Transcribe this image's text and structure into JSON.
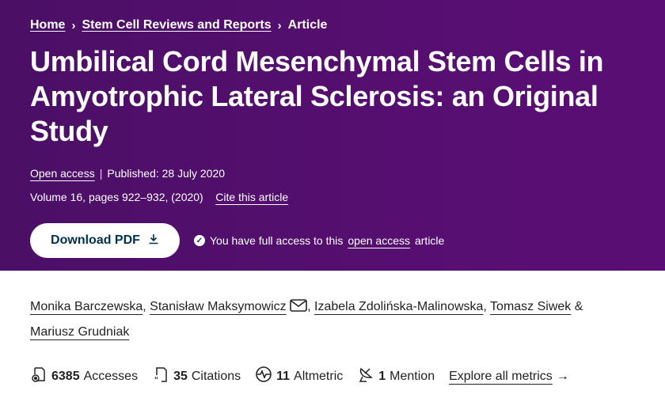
{
  "breadcrumb": {
    "items": [
      "Home",
      "Stem Cell Reviews and Reports",
      "Article"
    ]
  },
  "article": {
    "title": "Umbilical Cord Mesenchymal Stem Cells in Amyotrophic Lateral Sclerosis: an Original Study",
    "open_access": "Open access",
    "published": "Published: 28 July 2020",
    "volume": "Volume 16, pages 922–932, (2020)",
    "cite": "Cite this article",
    "download": "Download PDF",
    "access_pre": "You have full access to this",
    "access_link": "open access",
    "access_post": "article"
  },
  "authors": [
    "Monika Barczewska",
    "Stanisław Maksymowicz",
    "Izabela Zdolińska-Malinowska",
    "Tomasz Siwek",
    "Mariusz Grudniak"
  ],
  "metrics": {
    "accesses": {
      "value": "6385",
      "label": "Accesses"
    },
    "citations": {
      "value": "35",
      "label": "Citations"
    },
    "altmetric": {
      "value": "11",
      "label": "Altmetric"
    },
    "mentions": {
      "value": "1",
      "label": "Mention"
    },
    "explore": "Explore all metrics"
  },
  "colors": {
    "hero": "#4b0f66",
    "button_text": "#01324b"
  }
}
